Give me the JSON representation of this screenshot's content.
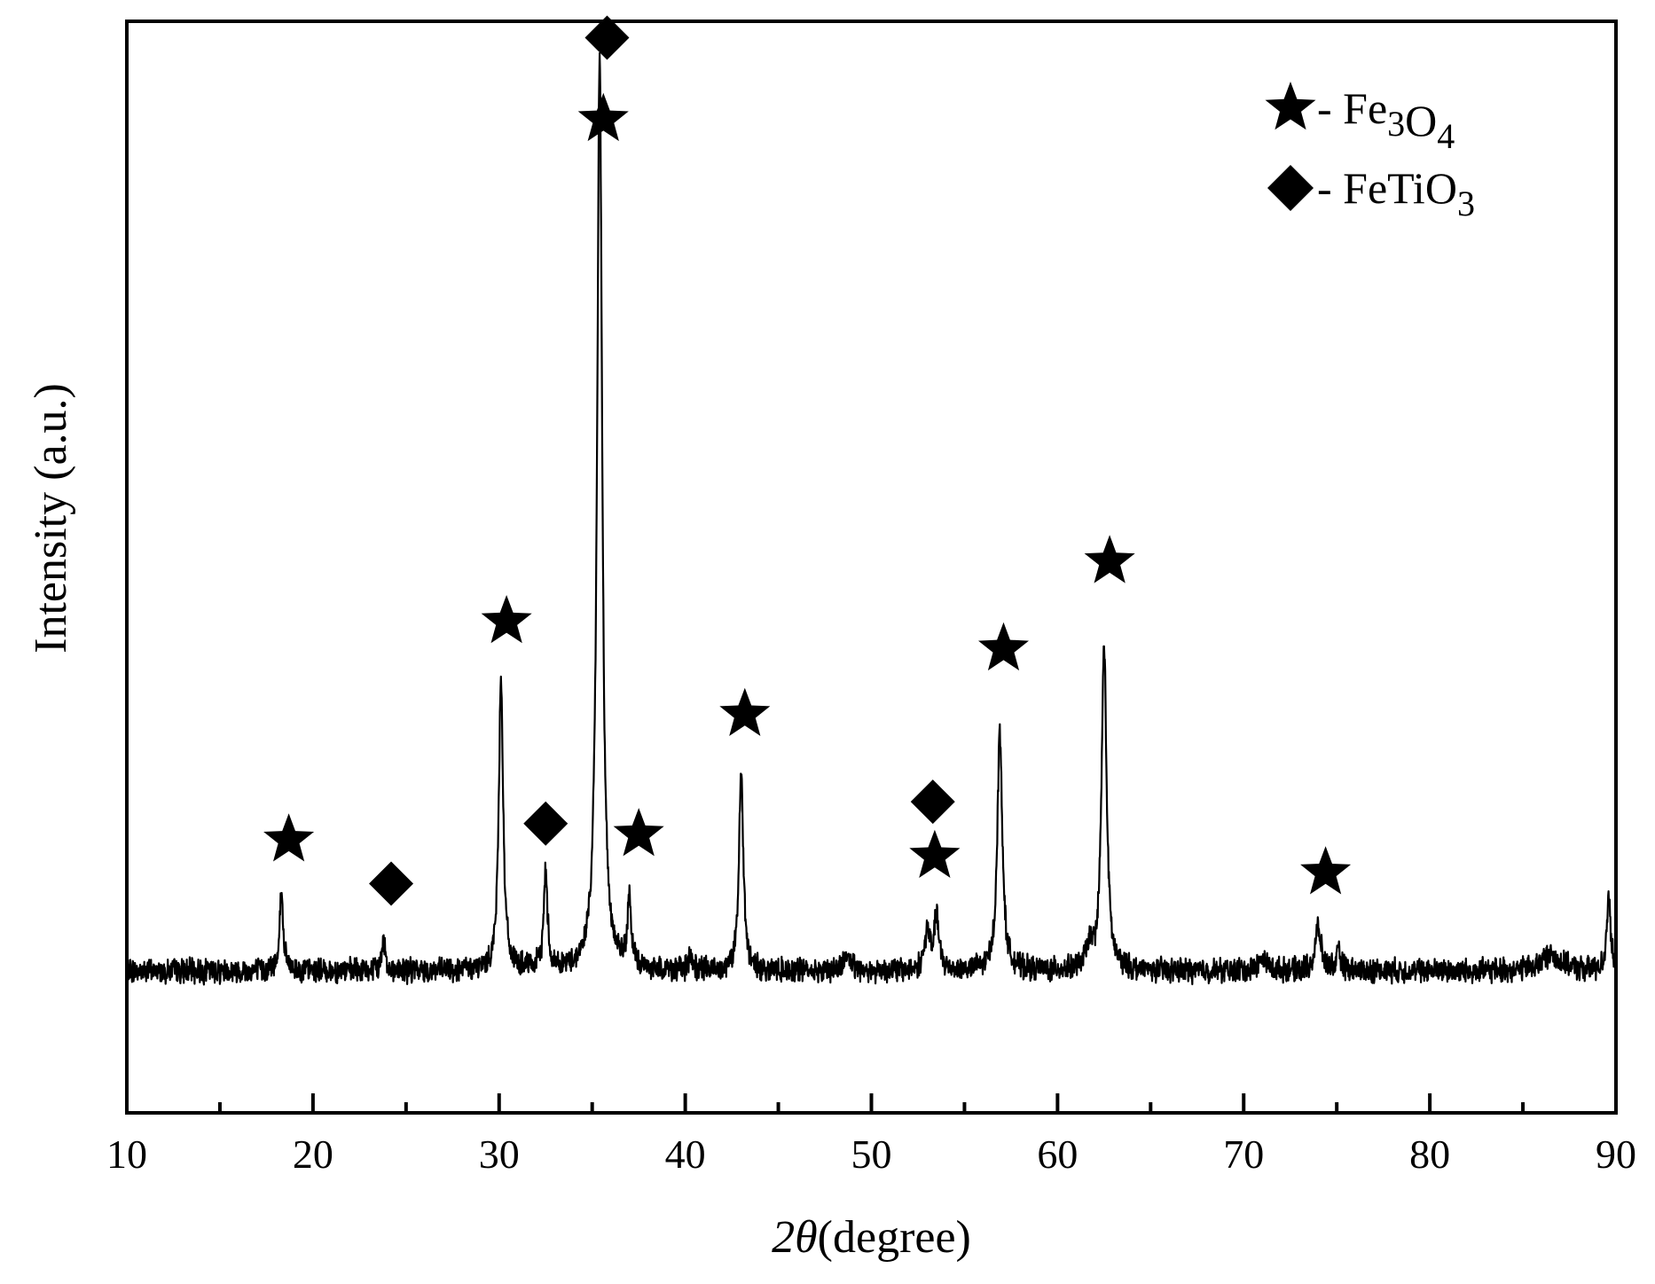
{
  "chart_data": {
    "type": "line",
    "title": "",
    "xlabel": "(degree)",
    "xlabel_symbol": "2θ",
    "ylabel": "Intensity (a.u.)",
    "xlim": [
      10,
      90
    ],
    "ylim": [
      0,
      100
    ],
    "x_ticks": [
      10,
      20,
      30,
      40,
      50,
      60,
      70,
      80,
      90
    ],
    "x_minor_ticks": [
      15,
      25,
      35,
      45,
      55,
      65,
      75,
      85
    ],
    "y_ticks_shown": false,
    "grid": false,
    "legend_placement": "top-right",
    "legend": [
      {
        "symbol": "star",
        "text": "- Fe",
        "sub1": "3",
        "mid": "O",
        "sub2": "4"
      },
      {
        "symbol": "diamond",
        "text": "- FeTiO",
        "sub1": "3",
        "mid": "",
        "sub2": ""
      }
    ],
    "baseline": 13,
    "peaks": [
      {
        "x": 18.3,
        "h": 7,
        "w": 0.12
      },
      {
        "x": 23.8,
        "h": 3,
        "w": 0.1
      },
      {
        "x": 30.1,
        "h": 27,
        "w": 0.14
      },
      {
        "x": 32.5,
        "h": 9,
        "w": 0.12
      },
      {
        "x": 35.4,
        "h": 84,
        "w": 0.16
      },
      {
        "x": 37.0,
        "h": 6,
        "w": 0.12
      },
      {
        "x": 40.3,
        "h": 1.5,
        "w": 0.1
      },
      {
        "x": 43.0,
        "h": 18,
        "w": 0.14
      },
      {
        "x": 48.7,
        "h": 1.5,
        "w": 0.2
      },
      {
        "x": 53.0,
        "h": 3.5,
        "w": 0.18
      },
      {
        "x": 53.5,
        "h": 5,
        "w": 0.14
      },
      {
        "x": 56.9,
        "h": 22,
        "w": 0.16
      },
      {
        "x": 61.7,
        "h": 2,
        "w": 0.2
      },
      {
        "x": 62.5,
        "h": 30,
        "w": 0.16
      },
      {
        "x": 71.0,
        "h": 1,
        "w": 0.3
      },
      {
        "x": 74.0,
        "h": 4,
        "w": 0.18
      },
      {
        "x": 75.1,
        "h": 1.5,
        "w": 0.15
      },
      {
        "x": 86.5,
        "h": 1.5,
        "w": 0.6
      },
      {
        "x": 89.6,
        "h": 7,
        "w": 0.12
      }
    ],
    "markers": [
      {
        "type": "star",
        "x": 18.7,
        "y": 25
      },
      {
        "type": "diamond",
        "x": 24.2,
        "y": 21
      },
      {
        "type": "star",
        "x": 30.4,
        "y": 45
      },
      {
        "type": "diamond",
        "x": 32.5,
        "y": 26.5
      },
      {
        "type": "star",
        "x": 35.6,
        "y": 91
      },
      {
        "type": "diamond",
        "x": 35.8,
        "y": 98.5
      },
      {
        "type": "star",
        "x": 37.5,
        "y": 25.5
      },
      {
        "type": "star",
        "x": 43.2,
        "y": 36.5
      },
      {
        "type": "diamond",
        "x": 53.3,
        "y": 28.5
      },
      {
        "type": "star",
        "x": 53.4,
        "y": 23.5
      },
      {
        "type": "star",
        "x": 57.1,
        "y": 42.5
      },
      {
        "type": "star",
        "x": 62.8,
        "y": 50.5
      },
      {
        "type": "star",
        "x": 74.4,
        "y": 22
      }
    ]
  }
}
